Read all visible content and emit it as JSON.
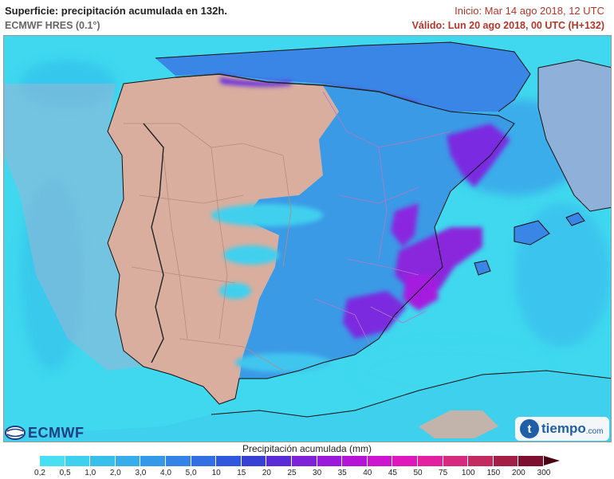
{
  "header": {
    "title": "Superficie: precipitación acumulada en 132h.",
    "model": "ECMWF HRES (0.1°)",
    "init": "Inicio: Mar 14 ago 2018, 12 UTC",
    "valid": "Válido: Lun 20 ago 2018, 00 UTC (H+132)"
  },
  "logos": {
    "ecmwf": "ECMWF",
    "tiempo_name": "tiempo",
    "tiempo_domain": ".com"
  },
  "legend": {
    "title": "Precipitación acumulada (mm)",
    "ticks": [
      "0,2",
      "0,5",
      "1,0",
      "2,0",
      "3,0",
      "4,0",
      "5,0",
      "10",
      "15",
      "20",
      "25",
      "30",
      "35",
      "40",
      "45",
      "50",
      "75",
      "100",
      "150",
      "200",
      "300"
    ],
    "colors": [
      "#47e0f2",
      "#3dd0ef",
      "#38c0ec",
      "#35aeeb",
      "#3399e8",
      "#3384e6",
      "#336fe3",
      "#3157df",
      "#3940d6",
      "#5a2cd8",
      "#7d22d9",
      "#9b19da",
      "#b514d6",
      "#cd14cf",
      "#df18bd",
      "#e3209f",
      "#d62a7e",
      "#c22a60",
      "#a41f45",
      "#7d1030"
    ],
    "over_color": "#4a0010"
  },
  "map": {
    "sea_color": "#3fd8ee",
    "dry_land_color": "#d9ae9f",
    "blue_rain_color": "#3c9ae6",
    "purple_rain_color": "#7b2be0"
  }
}
